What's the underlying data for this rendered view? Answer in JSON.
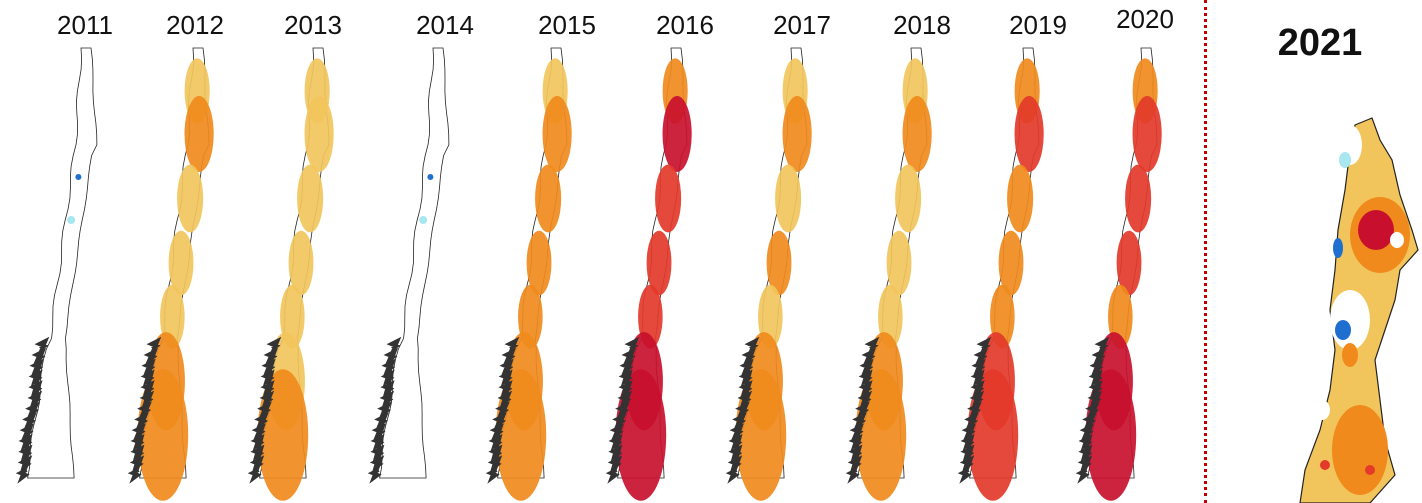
{
  "years": [
    "2011",
    "2012",
    "2013",
    "2014",
    "2015",
    "2016",
    "2017",
    "2018",
    "2019",
    "2020"
  ],
  "highlight_year": "2021",
  "palette": {
    "no_anomaly": "#ffffff",
    "light": "#f2c55c",
    "moderate": "#f08a1c",
    "strong": "#e33a2a",
    "extreme": "#c8102e",
    "cold_light": "#a8e6f0",
    "cold": "#1f6fd1",
    "outline": "#222222",
    "divider": "#c00000"
  },
  "intensity": [
    0.05,
    0.45,
    0.4,
    0.08,
    0.6,
    1.0,
    0.5,
    0.45,
    0.7,
    0.9
  ]
}
